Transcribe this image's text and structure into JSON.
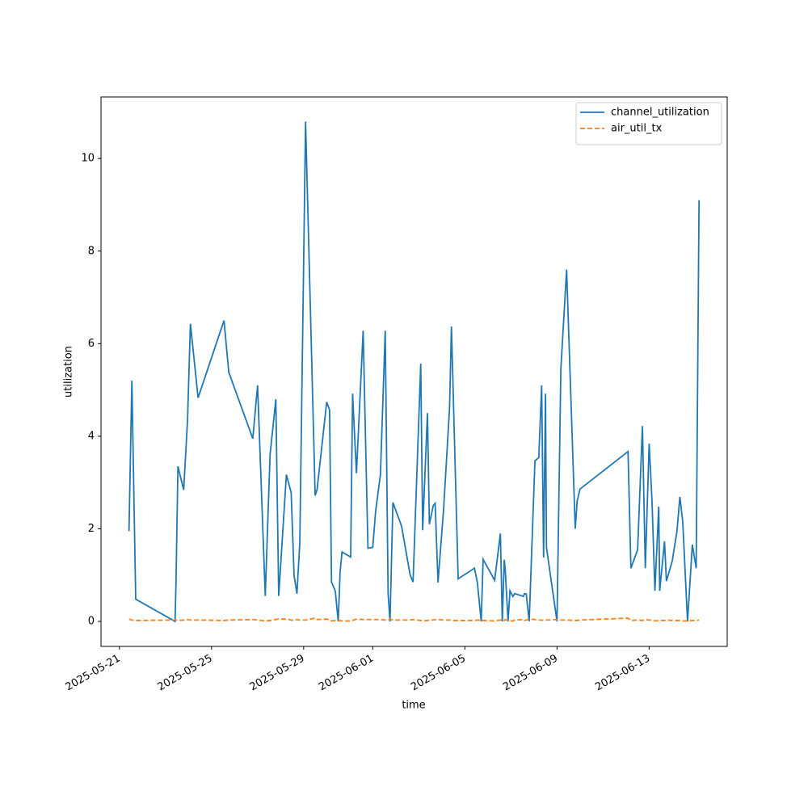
{
  "chart_data": {
    "type": "line",
    "xlabel": "time",
    "ylabel": "utilization",
    "x": [
      "2025-05-21T10:00",
      "2025-05-21T13:00",
      "2025-05-21T17:00",
      "2025-05-23T10:00",
      "2025-05-23T11:00",
      "2025-05-23T13:00",
      "2025-05-23T19:00",
      "2025-05-23T23:00",
      "2025-05-24T02:00",
      "2025-05-24T10:00",
      "2025-05-25T13:00",
      "2025-05-25T18:00",
      "2025-05-26T19:00",
      "2025-05-27T00:00",
      "2025-05-27T08:00",
      "2025-05-27T13:00",
      "2025-05-27T19:00",
      "2025-05-27T22:00",
      "2025-05-28T06:00",
      "2025-05-28T11:00",
      "2025-05-28T14:00",
      "2025-05-28T17:00",
      "2025-05-28T20:00",
      "2025-05-29T02:00",
      "2025-05-29T12:00",
      "2025-05-29T14:00",
      "2025-05-30T00:00",
      "2025-05-30T03:00",
      "2025-05-30T05:00",
      "2025-05-30T09:00",
      "2025-05-30T12:00",
      "2025-05-30T14:00",
      "2025-05-30T16:00",
      "2025-05-31T01:00",
      "2025-05-31T03:00",
      "2025-05-31T07:00",
      "2025-05-31T14:00",
      "2025-05-31T19:00",
      "2025-06-01T00:00",
      "2025-06-01T03:00",
      "2025-06-01T08:00",
      "2025-06-01T13:00",
      "2025-06-01T16:00",
      "2025-06-01T18:00",
      "2025-06-01T21:00",
      "2025-06-02T06:00",
      "2025-06-02T15:00",
      "2025-06-02T18:00",
      "2025-06-03T02:00",
      "2025-06-03T04:00",
      "2025-06-03T09:00",
      "2025-06-03T11:00",
      "2025-06-03T15:00",
      "2025-06-03T17:00",
      "2025-06-03T20:00",
      "2025-06-04T02:00",
      "2025-06-04T08:00",
      "2025-06-04T10:00",
      "2025-06-04T17:00",
      "2025-06-05T10:00",
      "2025-06-05T13:00",
      "2025-06-05T17:00",
      "2025-06-05T19:00",
      "2025-06-06T07:00",
      "2025-06-06T13:00",
      "2025-06-06T15:00",
      "2025-06-06T17:00",
      "2025-06-06T18:00",
      "2025-06-06T21:00",
      "2025-06-06T23:00",
      "2025-06-07T02:00",
      "2025-06-07T04:00",
      "2025-06-07T13:00",
      "2025-06-07T14:00",
      "2025-06-07T16:00",
      "2025-06-07T19:00",
      "2025-06-08T01:00",
      "2025-06-08T05:00",
      "2025-06-08T08:00",
      "2025-06-08T10:00",
      "2025-06-08T12:00",
      "2025-06-08T13:00",
      "2025-06-09T00:00",
      "2025-06-09T04:00",
      "2025-06-09T10:00",
      "2025-06-09T19:00",
      "2025-06-09T21:00",
      "2025-06-10T00:00",
      "2025-06-12T02:00",
      "2025-06-12T05:00",
      "2025-06-12T12:00",
      "2025-06-12T17:00",
      "2025-06-12T20:00",
      "2025-06-13T00:00",
      "2025-06-13T03:00",
      "2025-06-13T06:00",
      "2025-06-13T10:00",
      "2025-06-13T11:00",
      "2025-06-13T16:00",
      "2025-06-13T18:00",
      "2025-06-14T00:00",
      "2025-06-14T05:00",
      "2025-06-14T08:00",
      "2025-06-14T11:00",
      "2025-06-14T16:00",
      "2025-06-14T21:00",
      "2025-06-15T01:00",
      "2025-06-15T04:00"
    ],
    "series": [
      {
        "name": "channel_utilization",
        "color": "#1f77b4",
        "linestyle": "solid",
        "values": [
          1.95,
          5.2,
          0.48,
          0,
          0.85,
          3.35,
          2.84,
          4.35,
          6.43,
          4.83,
          6.5,
          5.38,
          3.95,
          5.1,
          0.55,
          3.6,
          4.8,
          0.55,
          3.17,
          2.78,
          1.0,
          0.6,
          1.7,
          10.8,
          2.72,
          2.85,
          4.74,
          4.57,
          0.85,
          0.65,
          0,
          1.08,
          1.5,
          1.39,
          4.92,
          3.2,
          6.28,
          1.58,
          1.6,
          2.38,
          3.17,
          6.28,
          0.6,
          0,
          2.57,
          2.06,
          1.0,
          0.85,
          5.57,
          1.97,
          4.5,
          2.1,
          2.5,
          2.55,
          0.84,
          2.48,
          4.6,
          6.37,
          0.92,
          1.15,
          0.84,
          0,
          1.34,
          0.89,
          1.9,
          0,
          1.33,
          1.13,
          0,
          0.66,
          0.54,
          0.6,
          0.54,
          0.6,
          0.59,
          0,
          3.47,
          3.54,
          5.1,
          1.38,
          4.92,
          1.6,
          0,
          5.45,
          7.6,
          2.0,
          2.6,
          2.86,
          3.67,
          1.15,
          1.55,
          4.22,
          1.15,
          3.84,
          2.6,
          0.66,
          2.48,
          0.66,
          1.73,
          0.87,
          1.3,
          1.95,
          2.69,
          2.16,
          0,
          1.66,
          1.15,
          9.1
        ]
      },
      {
        "name": "air_util_tx",
        "color": "#ff7f0e",
        "linestyle": "dashed",
        "values": [
          0.05,
          0.03,
          0.02,
          0.03,
          0.03,
          0.02,
          0.03,
          0.04,
          0.03,
          0.03,
          0.02,
          0.03,
          0.04,
          0.03,
          0.01,
          0.02,
          0.04,
          0.05,
          0.05,
          0.03,
          0.02,
          0.04,
          0.03,
          0.03,
          0.07,
          0.04,
          0.05,
          0.03,
          0.01,
          0.02,
          0.01,
          0.02,
          0.01,
          0.01,
          0.02,
          0.05,
          0.04,
          0.04,
          0.04,
          0.04,
          0.04,
          0.03,
          0.03,
          0.05,
          0.03,
          0.03,
          0.03,
          0.04,
          0.02,
          0.01,
          0.02,
          0.03,
          0.03,
          0.04,
          0.04,
          0.03,
          0.03,
          0.02,
          0.02,
          0.02,
          0.03,
          0.02,
          0.02,
          0.01,
          0.03,
          0.04,
          0.02,
          0.04,
          0.02,
          0.01,
          0.01,
          0.03,
          0.04,
          0.02,
          0.03,
          0.05,
          0.04,
          0.03,
          0.03,
          0.02,
          0.03,
          0.03,
          0.04,
          0.03,
          0.03,
          0.02,
          0.02,
          0.03,
          0.07,
          0.02,
          0.03,
          0.02,
          0.04,
          0.03,
          0.03,
          0.01,
          0.02,
          0.02,
          0.02,
          0.03,
          0.02,
          0.02,
          0.02,
          0.01,
          0.01,
          0.02,
          0.02,
          0.03
        ]
      }
    ],
    "xlim": [
      "2025-05-20T04:50",
      "2025-06-16T09:20"
    ],
    "xticks": [
      "2025-05-21",
      "2025-05-25",
      "2025-05-29",
      "2025-06-01",
      "2025-06-05",
      "2025-06-09",
      "2025-06-13"
    ],
    "ylim": [
      -0.54,
      11.33
    ],
    "yticks": [
      0,
      2,
      4,
      6,
      8,
      10
    ],
    "grid": false,
    "legend": "upper right"
  }
}
